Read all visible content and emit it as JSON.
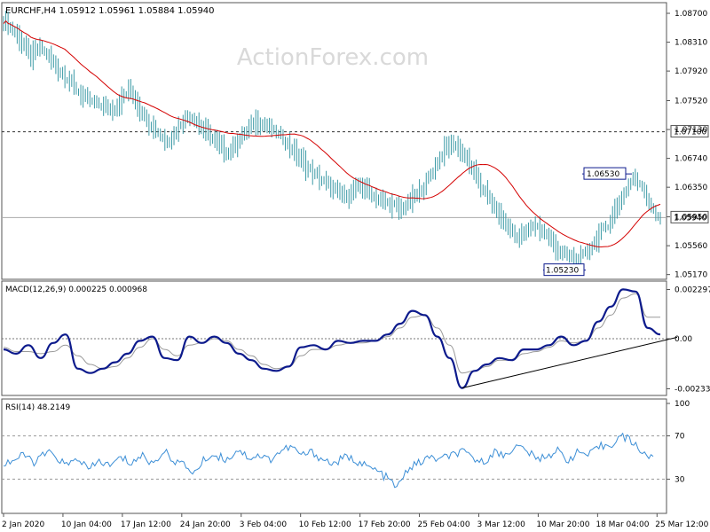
{
  "header": {
    "symbol_line": "EURCHF,H4  1.05912 1.05961 1.05884 1.05940",
    "watermark": "ActionForex.com"
  },
  "colors": {
    "bars": "#3c9aa6",
    "ma": "#d40000",
    "macd": "#0c1a8c",
    "signal": "#9a9a9a",
    "rsi": "#3b8ed6",
    "trendline": "#000000",
    "grid": "#555555"
  },
  "chart_data": [
    {
      "type": "ohlc",
      "title": "EURCHF,H4",
      "ohlc_header": {
        "open": 1.05912,
        "high": 1.05961,
        "low": 1.05884,
        "close": 1.0594
      },
      "y_ticks": [
        "1.08700",
        "1.08310",
        "1.07920",
        "1.07520",
        "1.07130",
        "1.06740",
        "1.06350",
        "1.05950",
        "1.05560",
        "1.05170"
      ],
      "ylim": [
        1.0513,
        1.0882
      ],
      "x_ticks": [
        "2 Jan 2020",
        "10 Jan 04:00",
        "17 Jan 12:00",
        "24 Jan 20:00",
        "3 Feb 04:00",
        "10 Feb 12:00",
        "17 Feb 20:00",
        "25 Feb 04:00",
        "3 Mar 12:00",
        "10 Mar 20:00",
        "18 Mar 04:00",
        "25 Mar 12:00"
      ],
      "series": [
        {
          "closes": [
            1.0862,
            1.0848,
            1.0832,
            1.081,
            1.0824,
            1.0811,
            1.0795,
            1.0784,
            1.0768,
            1.0755,
            1.0748,
            1.0745,
            1.074,
            1.0752,
            1.0768,
            1.0745,
            1.0725,
            1.0712,
            1.0697,
            1.0708,
            1.0728,
            1.0732,
            1.0715,
            1.0704,
            1.069,
            1.0682,
            1.0698,
            1.071,
            1.0725,
            1.072,
            1.071,
            1.0702,
            1.0688,
            1.0672,
            1.0658,
            1.0648,
            1.0638,
            1.0628,
            1.0622,
            1.0632,
            1.0636,
            1.0625,
            1.0616,
            1.0612,
            1.0604,
            1.0614,
            1.0625,
            1.0642,
            1.0665,
            1.0686,
            1.0695,
            1.0682,
            1.066,
            1.0638,
            1.0618,
            1.0598,
            1.0582,
            1.0568,
            1.0572,
            1.0585,
            1.0575,
            1.056,
            1.0545,
            1.054,
            1.0535,
            1.055,
            1.0568,
            1.0582,
            1.0605,
            1.0628,
            1.0648,
            1.0638,
            1.0605,
            1.0594
          ],
          "ma_period_shown": true
        }
      ],
      "annotations": [
        {
          "text": "1.06530",
          "value": 1.0653
        },
        {
          "text": "1.05230",
          "value": 1.0523
        }
      ],
      "levels": [
        {
          "label": "1.07100",
          "value": 1.071,
          "style": "dashed"
        },
        {
          "label": "1.05940",
          "value": 1.0594,
          "style": "solid",
          "current": true
        }
      ],
      "grid": false
    },
    {
      "type": "line",
      "title": "MACD(12,26,9) 0.000225 0.000968",
      "y_ticks": [
        "0.002297",
        "0.00",
        "-0.002336"
      ],
      "ylim": [
        -0.0024,
        0.0024
      ],
      "series": [
        {
          "name": "MACD",
          "values": [
            -0.0005,
            -0.0007,
            -0.0003,
            -0.0009,
            -0.0002,
            0.0002,
            -0.0014,
            -0.0016,
            -0.0014,
            -0.0011,
            -0.0007,
            -0.0001,
            0.0001,
            -0.0009,
            -0.001,
            0.0001,
            -0.0002,
            0.0001,
            -0.0002,
            -0.0007,
            -0.001,
            -0.0014,
            -0.0015,
            -0.0013,
            -0.0004,
            -0.0003,
            -0.0005,
            -0.0001,
            -0.0002,
            -0.0001,
            -0.0001,
            0.0002,
            0.0007,
            0.0013,
            0.0011,
            0.0001,
            -0.0009,
            -0.0023,
            -0.0015,
            -0.0012,
            -0.0009,
            -0.001,
            -0.0005,
            -0.0005,
            -0.0003,
            0.0001,
            -0.0003,
            -0.0001,
            0.0008,
            0.0015,
            0.0023,
            0.0022,
            0.0005,
            0.0002
          ]
        },
        {
          "name": "Signal",
          "values": [
            -0.0004,
            -0.0006,
            -0.0006,
            -0.0007,
            -0.0006,
            -0.0003,
            -0.0008,
            -0.0012,
            -0.0014,
            -0.0013,
            -0.0009,
            -0.0004,
            0.0,
            -0.0005,
            -0.0008,
            -0.0003,
            -0.0002,
            0.0,
            -0.0001,
            -0.0005,
            -0.0008,
            -0.0012,
            -0.0014,
            -0.0013,
            -0.0008,
            -0.0005,
            -0.0005,
            -0.0003,
            -0.0002,
            -0.0002,
            -0.0001,
            0.0001,
            0.0005,
            0.001,
            0.0011,
            0.0005,
            -0.0003,
            -0.0016,
            -0.0015,
            -0.0013,
            -0.001,
            -0.001,
            -0.0007,
            -0.0006,
            -0.0004,
            -0.0001,
            -0.0002,
            -0.0001,
            0.0005,
            0.0011,
            0.0019,
            0.0021,
            0.001,
            0.001
          ]
        }
      ],
      "zero_line": true,
      "trendline": {
        "from": [
          37,
          -0.0023
        ],
        "to": [
          53.5,
          -0.0001
        ]
      }
    },
    {
      "type": "line",
      "title": "RSI(14) 48.2149",
      "y_ticks": [
        "100",
        "70",
        "30"
      ],
      "ylim": [
        0,
        100
      ],
      "series": [
        {
          "name": "RSI",
          "values": [
            44,
            48,
            52,
            45,
            55,
            50,
            42,
            50,
            38,
            47,
            42,
            50,
            45,
            52,
            44,
            56,
            48,
            42,
            36,
            50,
            52,
            48,
            58,
            50,
            52,
            48,
            56,
            60,
            52,
            55,
            48,
            44,
            50,
            48,
            42,
            38,
            31,
            22,
            40,
            45,
            50,
            48,
            52,
            55,
            50,
            45,
            55,
            52,
            60,
            58,
            48,
            52,
            56,
            48,
            55,
            52,
            60,
            62,
            70,
            65,
            55,
            48
          ]
        }
      ],
      "levels": [
        70,
        30
      ]
    }
  ]
}
